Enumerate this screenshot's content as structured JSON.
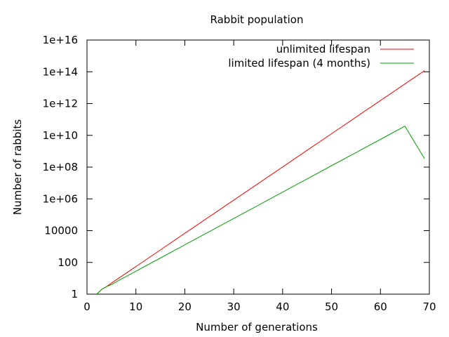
{
  "chart_data": {
    "type": "line",
    "title": "Rabbit population",
    "xlabel": "Number of generations",
    "ylabel": "Number of rabbits",
    "xlim": [
      0,
      70
    ],
    "ylim": [
      1,
      1e+16
    ],
    "yscale": "log",
    "xticks": [
      0,
      10,
      20,
      30,
      40,
      50,
      60,
      70
    ],
    "xtick_labels": [
      "0",
      "10",
      "20",
      "30",
      "40",
      "50",
      "60",
      "70"
    ],
    "yticks": [
      1,
      100,
      10000,
      1000000.0,
      100000000.0,
      10000000000.0,
      1000000000000.0,
      100000000000000.0,
      1e+16
    ],
    "ytick_labels": [
      "1",
      "100",
      "10000",
      "1e+06",
      "1e+08",
      "1e+10",
      "1e+12",
      "1e+14",
      "1e+16"
    ],
    "grid": false,
    "legend_position": "top-right",
    "series": [
      {
        "name": "unlimited lifespan",
        "color": "#ff0000",
        "x": [
          2,
          3,
          4,
          5,
          6,
          7,
          8,
          9,
          10,
          15,
          20,
          25,
          30,
          35,
          40,
          45,
          50,
          55,
          60,
          65,
          69
        ],
        "y": [
          1,
          2,
          3,
          5,
          8,
          13,
          21,
          34,
          55,
          610,
          6765,
          75025,
          832040,
          9227465,
          102334155,
          1134903170,
          12586269025,
          139583862445,
          1548008755920,
          17167680177565,
          117669030460994
        ]
      },
      {
        "name": "limited lifespan (4 months)",
        "color": "#00a000",
        "x": [
          2,
          3,
          4,
          5,
          6,
          7,
          8,
          9,
          10,
          15,
          20,
          25,
          30,
          35,
          40,
          45,
          50,
          55,
          60,
          65,
          69
        ],
        "y": [
          1,
          2,
          3,
          4,
          6,
          9,
          13,
          19,
          28,
          189,
          1278,
          8641,
          58425,
          395033,
          2670964,
          18059374,
          122106097,
          825604416,
          5582255005,
          37743479924,
          350000000
        ]
      }
    ]
  }
}
